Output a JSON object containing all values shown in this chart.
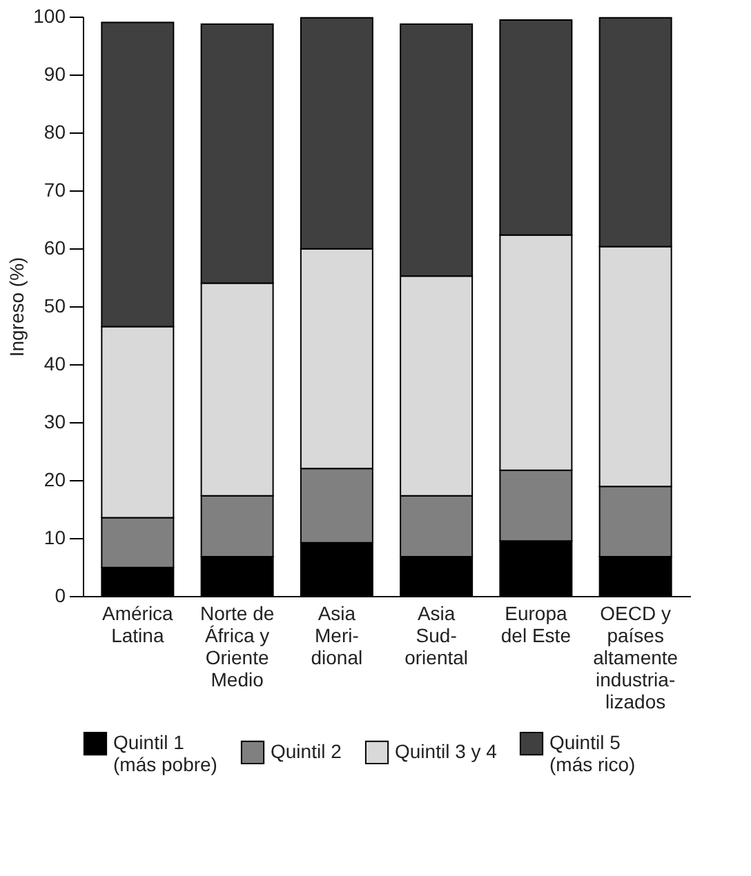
{
  "chart_data": {
    "type": "bar",
    "stacked": true,
    "ylabel": "Ingreso (%)",
    "categories": [
      "América\nLatina",
      "Norte de\nÁfrica y\nOriente\nMedio",
      "Asia\nMeri-\ndional",
      "Asia\nSud-\noriental",
      "Europa\ndel Este",
      "OECD y\npaíses\naltamente\nindustria-\nlizados"
    ],
    "series": [
      {
        "name": "Quintil 1\n(más pobre)",
        "color": "#000000",
        "values": [
          4.9,
          6.8,
          9.2,
          6.8,
          9.5,
          6.8
        ]
      },
      {
        "name": "Quintil 2",
        "color": "#808080",
        "values": [
          8.6,
          10.5,
          12.8,
          10.5,
          12.2,
          12.1
        ]
      },
      {
        "name": "Quintil 3 y 4",
        "color": "#d9d9d9",
        "values": [
          33.0,
          36.7,
          37.9,
          37.9,
          40.6,
          41.4
        ]
      },
      {
        "name": "Quintil 5\n(más rico)",
        "color": "#404040",
        "values": [
          52.5,
          44.7,
          39.9,
          43.5,
          37.1,
          39.5
        ]
      }
    ],
    "ylim": [
      0,
      100
    ],
    "yticks": [
      0,
      10,
      20,
      30,
      40,
      50,
      60,
      70,
      80,
      90,
      100
    ],
    "grid": false,
    "legend": "bottom"
  }
}
